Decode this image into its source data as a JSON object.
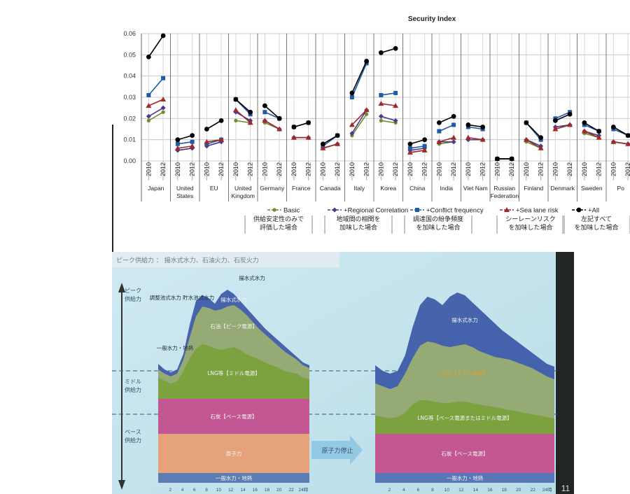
{
  "chart_data": [
    {
      "type": "line",
      "title": "Security Index",
      "xlabel": "",
      "ylabel": "",
      "ylim": [
        0,
        0.06
      ],
      "yticks": [
        "0.06",
        "0.05",
        "0.04",
        "0.03",
        "0.02",
        "0.01",
        "0.00"
      ],
      "year_labels": [
        "2010",
        "2012"
      ],
      "grid": true,
      "legend_position": "bottom",
      "categories": [
        "Japan",
        "United States",
        "EU",
        "United Kingdom",
        "Germany",
        "France",
        "Canada",
        "Italy",
        "Korea",
        "China",
        "India",
        "Viet Nam",
        "Russian Federation",
        "Finland",
        "Denmark",
        "Sweden",
        "Po"
      ],
      "category_lines": [
        [
          "Japan"
        ],
        [
          "United",
          "States"
        ],
        [
          "EU"
        ],
        [
          "United",
          "Kingdom"
        ],
        [
          "Germany"
        ],
        [
          "France"
        ],
        [
          "Canada"
        ],
        [
          "Italy"
        ],
        [
          "Korea"
        ],
        [
          "China"
        ],
        [
          "India"
        ],
        [
          "Viet Nam"
        ],
        [
          "Russian",
          "Federation"
        ],
        [
          "Finland"
        ],
        [
          "Denmark"
        ],
        [
          "Sweden"
        ],
        [
          "Po"
        ]
      ],
      "series": [
        {
          "name": "Basic",
          "color": "#6e8f2a",
          "marker": "circle-small",
          "values": [
            [
              0.019,
              0.023
            ],
            [
              0.005,
              0.006
            ],
            [
              0.007,
              0.009
            ],
            [
              0.019,
              0.018
            ],
            [
              0.018,
              0.015
            ],
            [
              0.011,
              0.011
            ],
            [
              0.006,
              0.008
            ],
            [
              0.012,
              0.022
            ],
            [
              0.019,
              0.018
            ],
            [
              0.004,
              0.005
            ],
            [
              0.008,
              0.009
            ],
            [
              0.01,
              0.01
            ],
            [
              0.001,
              0.001
            ],
            [
              0.009,
              0.006
            ],
            [
              0.015,
              0.017
            ],
            [
              0.013,
              0.011
            ],
            [
              0.009,
              0.008
            ]
          ]
        },
        {
          "name": "+Regional Correlation",
          "color": "#4e3a8c",
          "marker": "diamond",
          "values": [
            [
              0.021,
              0.025
            ],
            [
              0.005,
              0.006
            ],
            [
              0.007,
              0.009
            ],
            [
              0.023,
              0.019
            ],
            [
              0.019,
              0.015
            ],
            [
              0.011,
              0.011
            ],
            [
              0.006,
              0.008
            ],
            [
              0.013,
              0.024
            ],
            [
              0.021,
              0.019
            ],
            [
              0.005,
              0.006
            ],
            [
              0.009,
              0.009
            ],
            [
              0.01,
              0.01
            ],
            [
              0.001,
              0.001
            ],
            [
              0.01,
              0.007
            ],
            [
              0.016,
              0.017
            ],
            [
              0.014,
              0.012
            ],
            [
              0.009,
              0.008
            ]
          ]
        },
        {
          "name": "+Conflict frequency",
          "color": "#1f5aa6",
          "marker": "square",
          "values": [
            [
              0.031,
              0.039
            ],
            [
              0.008,
              0.009
            ],
            [
              0.008,
              0.01
            ],
            [
              0.029,
              0.022
            ],
            [
              0.023,
              0.02
            ],
            [
              0.016,
              0.018
            ],
            [
              0.007,
              0.012
            ],
            [
              0.03,
              0.046
            ],
            [
              0.031,
              0.032
            ],
            [
              0.006,
              0.007
            ],
            [
              0.014,
              0.017
            ],
            [
              0.016,
              0.015
            ],
            [
              0.001,
              0.001
            ],
            [
              0.018,
              0.01
            ],
            [
              0.02,
              0.023
            ],
            [
              0.017,
              0.014
            ],
            [
              0.015,
              0.012
            ]
          ]
        },
        {
          "name": "+Sea lane risk",
          "color": "#a02a2a",
          "marker": "triangle",
          "values": [
            [
              0.026,
              0.029
            ],
            [
              0.006,
              0.007
            ],
            [
              0.009,
              0.01
            ],
            [
              0.024,
              0.018
            ],
            [
              0.019,
              0.015
            ],
            [
              0.011,
              0.011
            ],
            [
              0.006,
              0.008
            ],
            [
              0.017,
              0.024
            ],
            [
              0.027,
              0.026
            ],
            [
              0.004,
              0.005
            ],
            [
              0.009,
              0.011
            ],
            [
              0.011,
              0.01
            ],
            [
              0.001,
              0.001
            ],
            [
              0.01,
              0.006
            ],
            [
              0.015,
              0.017
            ],
            [
              0.014,
              0.011
            ],
            [
              0.009,
              0.008
            ]
          ]
        },
        {
          "name": "+All",
          "color": "#000000",
          "marker": "circle",
          "values": [
            [
              0.049,
              0.059
            ],
            [
              0.01,
              0.012
            ],
            [
              0.015,
              0.019
            ],
            [
              0.029,
              0.023
            ],
            [
              0.026,
              0.02
            ],
            [
              0.016,
              0.018
            ],
            [
              0.008,
              0.012
            ],
            [
              0.032,
              0.047
            ],
            [
              0.051,
              0.053
            ],
            [
              0.008,
              0.01
            ],
            [
              0.018,
              0.021
            ],
            [
              0.017,
              0.016
            ],
            [
              0.001,
              0.001
            ],
            [
              0.018,
              0.011
            ],
            [
              0.019,
              0.022
            ],
            [
              0.018,
              0.014
            ],
            [
              0.016,
              0.012
            ]
          ]
        }
      ],
      "legend_notes": [
        [
          "供給安定性のみで",
          "評価した場合"
        ],
        [
          "地域間の相関を",
          "加味した場合"
        ],
        [
          "調達国の紛争頻度",
          "を加味した場合"
        ],
        [
          "シーレーンリスク",
          "を加味した場合"
        ],
        [
          "左記すべて",
          "を加味した場合"
        ]
      ]
    },
    {
      "type": "area",
      "title": "ピーク供給力 ： 揚水式水力、石油火力、石炭火力",
      "left_labels": [
        "ピーク 供給力",
        "ミドル 供給力",
        "ベース 供給力"
      ],
      "arrow_label": "原子力停止",
      "x_ticks": [
        "2",
        "4",
        "6",
        "8",
        "10",
        "12",
        "14",
        "16",
        "18",
        "20",
        "22",
        "24時"
      ],
      "page_number": "11",
      "panels": [
        {
          "callouts": [
            "揚水式水力",
            "調整池式水力 貯水池式水力",
            "一般水力・地熱"
          ],
          "layers": [
            {
              "label": "一般水力・地熱",
              "color": "#4f79b8"
            },
            {
              "label": "原子力",
              "color": "#e8a878"
            },
            {
              "label": "石炭【ベース電源】",
              "color": "#c8509a"
            },
            {
              "label": "LNG等【ミドル電源】",
              "color": "#7aa23c"
            },
            {
              "label": "石油【ピーク電源】",
              "color": "#9db070"
            },
            {
              "label": "揚水式水力",
              "color": "#3b58a6"
            }
          ]
        },
        {
          "callouts": [],
          "layers": [
            {
              "label": "一般水力・地熱",
              "color": "#4f79b8"
            },
            {
              "label": "石炭【ベース電源】",
              "color": "#c8509a"
            },
            {
              "label": "LNG等【ベース電源またはミドル電源】",
              "color": "#7aa23c"
            },
            {
              "label": "石油【ミドル電源】",
              "color": "#9db070"
            },
            {
              "label": "揚水式水力",
              "color": "#3b58a6"
            }
          ]
        }
      ]
    }
  ]
}
